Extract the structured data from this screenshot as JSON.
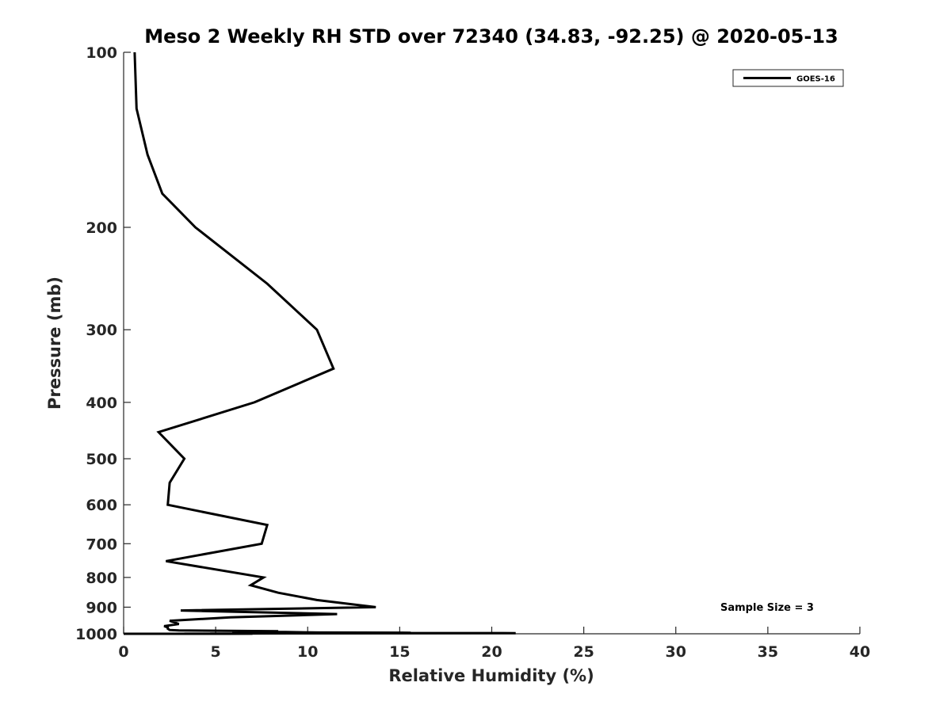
{
  "chart_data": {
    "type": "line",
    "title": "Meso 2 Weekly RH STD over 72340 (34.83, -92.25) @ 2020-05-13",
    "xlabel": "Relative Humidity (%)",
    "ylabel": "Pressure (mb)",
    "xlim": [
      0,
      40
    ],
    "ylim": [
      100,
      1000
    ],
    "yscale": "log",
    "yreversed": true,
    "x_ticks": [
      0,
      5,
      10,
      15,
      20,
      25,
      30,
      35,
      40
    ],
    "y_ticks": [
      100,
      200,
      300,
      400,
      500,
      600,
      700,
      800,
      900,
      1000
    ],
    "grid": false,
    "legend_position": "top-right",
    "annotation": "Sample Size = 3",
    "colors": {
      "line": "#000000",
      "axis": "#262626"
    },
    "series": [
      {
        "name": "GOES-16",
        "points": [
          [
            0.6,
            100
          ],
          [
            0.7,
            125
          ],
          [
            1.3,
            150
          ],
          [
            2.1,
            175
          ],
          [
            3.9,
            200
          ],
          [
            7.8,
            250
          ],
          [
            10.5,
            300
          ],
          [
            11.4,
            350
          ],
          [
            7.1,
            400
          ],
          [
            1.9,
            450
          ],
          [
            3.3,
            500
          ],
          [
            2.5,
            550
          ],
          [
            2.4,
            600
          ],
          [
            7.8,
            650
          ],
          [
            7.5,
            700
          ],
          [
            2.3,
            750
          ],
          [
            7.6,
            800
          ],
          [
            6.9,
            825
          ],
          [
            8.4,
            850
          ],
          [
            10.5,
            875
          ],
          [
            13.7,
            900
          ],
          [
            3.1,
            912
          ],
          [
            11.6,
            925
          ],
          [
            5.8,
            937
          ],
          [
            2.5,
            950
          ],
          [
            3.0,
            962
          ],
          [
            2.2,
            970
          ],
          [
            2.4,
            975
          ],
          [
            2.4,
            980
          ],
          [
            2.5,
            985
          ],
          [
            3.0,
            987
          ],
          [
            8.4,
            990
          ],
          [
            5.9,
            992
          ],
          [
            8.8,
            993
          ],
          [
            10.6,
            995
          ],
          [
            15.6,
            996
          ],
          [
            11.8,
            997
          ],
          [
            21.3,
            997.5
          ],
          [
            14.5,
            998
          ],
          [
            9.0,
            998.5
          ],
          [
            5.6,
            999
          ],
          [
            4.7,
            999.2
          ],
          [
            5.1,
            999.4
          ],
          [
            3.9,
            999.6
          ],
          [
            3.3,
            999.8
          ],
          [
            7.0,
            999.9
          ],
          [
            0.0,
            1000
          ]
        ]
      }
    ]
  }
}
